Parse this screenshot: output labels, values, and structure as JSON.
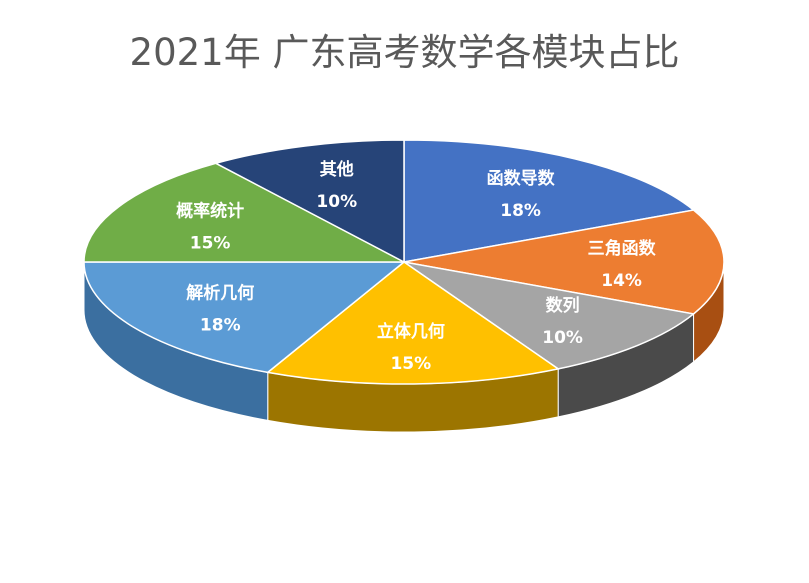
{
  "chart_data": {
    "type": "pie",
    "title": "2021年 广东高考数学各模块占比",
    "slices": [
      {
        "label": "函数导数",
        "value": 18,
        "display": "18%",
        "color": "#4472C4",
        "side": "#2F5597"
      },
      {
        "label": "三角函数",
        "value": 14,
        "display": "14%",
        "color": "#ED7D31",
        "side": "#A84F12"
      },
      {
        "label": "数列",
        "value": 10,
        "display": "10%",
        "color": "#A5A5A5",
        "side": "#4A4A4A"
      },
      {
        "label": "立体几何",
        "value": 15,
        "display": "15%",
        "color": "#FFC000",
        "side": "#9C7500"
      },
      {
        "label": "解析几何",
        "value": 18,
        "display": "18%",
        "color": "#5B9BD5",
        "side": "#3B6FA0"
      },
      {
        "label": "概率统计",
        "value": 15,
        "display": "15%",
        "color": "#70AD47",
        "side": "#4E7A31"
      },
      {
        "label": "其他",
        "value": 10,
        "display": "10%",
        "color": "#264478",
        "side": "#15284A"
      }
    ]
  }
}
